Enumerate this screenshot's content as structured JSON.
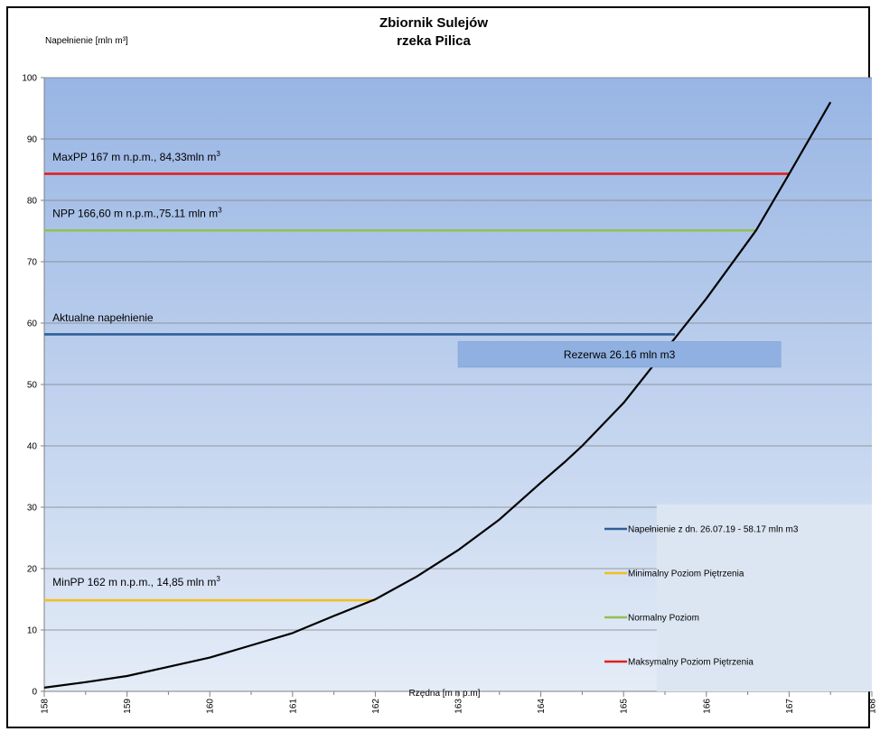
{
  "chart_data": {
    "type": "line",
    "title": "Zbiornik Sulejów",
    "subtitle": "rzeka Pilica",
    "ylabel": "Napełnienie [mln m³]",
    "xlabel": "Rzędna  [m n p.m]",
    "xlim": [
      158,
      168
    ],
    "ylim": [
      0,
      100
    ],
    "x_ticks": [
      158,
      159,
      160,
      161,
      162,
      163,
      164,
      165,
      166,
      167,
      168
    ],
    "y_ticks": [
      0,
      10,
      20,
      30,
      40,
      50,
      60,
      70,
      80,
      90,
      100
    ],
    "grid": true,
    "legend_position": "bottom-right",
    "curve": {
      "name": "",
      "color": "#000000",
      "x": [
        158,
        158.5,
        159,
        159.5,
        160,
        160.5,
        161,
        161.5,
        162,
        162.5,
        163,
        163.5,
        164,
        164.3,
        164.5,
        165,
        165.5,
        166,
        166.6,
        167,
        167.5
      ],
      "y": [
        0.6,
        1.5,
        2.5,
        4,
        5.5,
        7.5,
        9.5,
        12.3,
        15,
        18.7,
        23,
        28,
        34,
        37.5,
        40,
        47,
        55.5,
        64,
        75.1,
        84.3,
        96
      ]
    },
    "series": [
      {
        "name": "Napełnienie z dn. 26.07.19 - 58.17 mln m3",
        "color": "#2E5E99",
        "x": [
          158,
          165.62
        ],
        "y": [
          58.17,
          58.17
        ]
      },
      {
        "name": "Minimalny Poziom Piętrzenia",
        "color": "#F2BE22",
        "x": [
          158,
          162
        ],
        "y": [
          14.85,
          14.85
        ]
      },
      {
        "name": "Normalny Poziom",
        "color": "#92C050",
        "x": [
          158,
          166.6
        ],
        "y": [
          75.11,
          75.11
        ]
      },
      {
        "name": "Maksymalny Poziom Piętrzenia",
        "color": "#E02020",
        "x": [
          158,
          167
        ],
        "y": [
          84.33,
          84.33
        ]
      }
    ],
    "annotations": [
      {
        "text": "MaxPP 167 m n.p.m., 84,33mln m³",
        "x": 158.1,
        "y": 86.5
      },
      {
        "text": "NPP 166,60 m n.p.m.,75.11 mln m³",
        "x": 158.1,
        "y": 77.3
      },
      {
        "text": "Aktualne napełnienie",
        "x": 158.1,
        "y": 60.3
      },
      {
        "text": "MinPP 162 m n.p.m., 14,85 mln m³",
        "x": 158.1,
        "y": 17.2
      }
    ],
    "reserve_label": "Rezerwa 26.16 mln m3",
    "reserve_box": {
      "x0": 163.0,
      "x1": 166.9,
      "y0": 52.8,
      "y1": 57
    },
    "legend_box": {
      "x0": 165.4,
      "x1": 168,
      "y0": 0,
      "y1": 30.5
    },
    "colors": {
      "plot_top": "#98B5E4",
      "plot_bottom": "#E4ECF7",
      "reserve_box": "#8FB0E0",
      "legend_box": "#DCE6F2",
      "grid": "#808080"
    }
  }
}
